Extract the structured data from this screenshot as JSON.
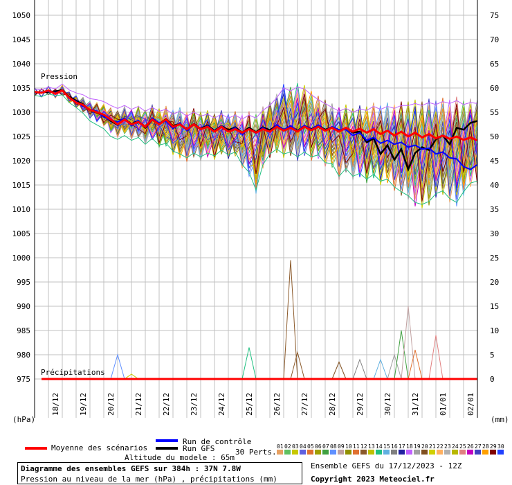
{
  "chart_data": {
    "type": "line",
    "title": "Diagramme des ensembles GEFS sur 384h : 37N 7.8W",
    "subtitle": "Pression au niveau de la mer (hPa) , précipitations (mm)",
    "left_axis": {
      "label": "(hPa)",
      "ylim": [
        970,
        1052
      ],
      "ticks": [
        1050,
        1045,
        1040,
        1035,
        1030,
        1025,
        1020,
        1015,
        1010,
        1005,
        1000,
        995,
        990,
        985,
        980,
        975
      ]
    },
    "right_axis": {
      "label": "(mm)",
      "ylim": [
        -3,
        79
      ],
      "ticks": [
        75,
        70,
        65,
        60,
        55,
        50,
        45,
        40,
        35,
        30,
        25,
        20,
        15,
        10,
        5,
        0
      ]
    },
    "x_dates": [
      "18/12",
      "19/12",
      "20/12",
      "21/12",
      "22/12",
      "23/12",
      "24/12",
      "25/12",
      "26/12",
      "27/12",
      "28/12",
      "29/12",
      "30/12",
      "31/12",
      "01/01",
      "02/01"
    ],
    "x_range_days": [
      0,
      16
    ],
    "section_labels": {
      "pressure": "Pression",
      "precip": "Précipitations"
    },
    "mean_pressure": [
      1034.2,
      1034,
      1034.5,
      1033.8,
      1034.5,
      1033,
      1032,
      1031.5,
      1030.5,
      1030,
      1029.5,
      1028.5,
      1027.5,
      1028.5,
      1027.5,
      1028,
      1027,
      1028.5,
      1027.5,
      1028.5,
      1027,
      1027.5,
      1026.5,
      1027.5,
      1026.5,
      1027,
      1026,
      1027,
      1026,
      1026.5,
      1025.8,
      1026.5,
      1025.8,
      1026.5,
      1026,
      1027,
      1026.2,
      1026.8,
      1026,
      1027,
      1026.3,
      1027,
      1026.2,
      1026.8,
      1026,
      1026.8,
      1026,
      1026.6,
      1025.8,
      1026.5,
      1025.5,
      1026.2,
      1025.2,
      1026,
      1025,
      1025.8,
      1024.8,
      1025.5,
      1024.6,
      1025.2,
      1024.5,
      1025,
      1024.3,
      1024.8,
      1024.2
    ],
    "control_pressure": [
      1034,
      1034.2,
      1034.3,
      1034,
      1034.4,
      1033,
      1032.2,
      1031.2,
      1030.6,
      1030.2,
      1029,
      1028.4,
      1028,
      1028.8,
      1027.2,
      1028.3,
      1027,
      1028.8,
      1027.8,
      1028.2,
      1026.6,
      1027.8,
      1026.2,
      1027.4,
      1026.4,
      1027.2,
      1026.1,
      1027.2,
      1026,
      1026.8,
      1025.4,
      1026.6,
      1025.6,
      1026.8,
      1025.9,
      1027.4,
      1026.4,
      1027.2,
      1026.1,
      1027.3,
      1026.4,
      1027.4,
      1026.2,
      1027,
      1026.4,
      1026.4,
      1025.2,
      1025.8,
      1024.2,
      1024.8,
      1023.6,
      1024.2,
      1023.4,
      1023.8,
      1022.8,
      1023.2,
      1022.4,
      1022.6,
      1021.4,
      1021.8,
      1020.6,
      1020.4,
      1018.8,
      1018.2,
      1019.2
    ],
    "gfs_pressure": [
      1034,
      1034.1,
      1034.2,
      1034.3,
      1034.6,
      1033.2,
      1032.4,
      1031.6,
      1030.4,
      1029.9,
      1029.3,
      1028.2,
      1027.4,
      1028.6,
      1027.6,
      1028.2,
      1026.8,
      1028.4,
      1027.6,
      1028.6,
      1027.2,
      1027.6,
      1026.4,
      1027.6,
      1026.6,
      1027.3,
      1026.2,
      1027.2,
      1026.3,
      1026.9,
      1025.8,
      1026.8,
      1025.9,
      1026.9,
      1026.3,
      1027.3,
      1026.4,
      1027.1,
      1026.2,
      1027.2,
      1026.5,
      1027.3,
      1026.4,
      1026.9,
      1026.1,
      1026.8,
      1025.8,
      1026,
      1023.8,
      1024.6,
      1021.4,
      1023.2,
      1020.2,
      1022.4,
      1018.2,
      1021.6,
      1022.8,
      1022.2,
      1024.4,
      1025.2,
      1023.4,
      1026.8,
      1026.4,
      1027.8,
      1028.2
    ],
    "perturbation_spread_lower": [
      1033.5,
      1033.2,
      1033.8,
      1033.4,
      1033.6,
      1032,
      1031,
      1029.8,
      1028.2,
      1027.4,
      1026.6,
      1025,
      1024.4,
      1025.2,
      1024.2,
      1024.8,
      1023.4,
      1024.6,
      1023.2,
      1023.6,
      1022,
      1021.4,
      1020.6,
      1021.6,
      1020.8,
      1021.6,
      1021,
      1022.2,
      1021.2,
      1021.8,
      1019.2,
      1017.6,
      1014,
      1019.2,
      1021.4,
      1022.4,
      1021.4,
      1021.8,
      1020.8,
      1021.8,
      1020.8,
      1021.2,
      1019.6,
      1019.4,
      1016.8,
      1018.4,
      1016.8,
      1017.4,
      1016.2,
      1017.2,
      1015.8,
      1016.2,
      1014.6,
      1013.6,
      1012.8,
      1011.4,
      1011,
      1011.6,
      1013.2,
      1013.8,
      1012.2,
      1011.4,
      1013.6,
      1015.4,
      1015.8
    ],
    "perturbation_spread_upper": [
      1034.8,
      1034.6,
      1035.2,
      1034.8,
      1035.8,
      1034.6,
      1034,
      1033.6,
      1032.8,
      1032.6,
      1032.2,
      1031.4,
      1030.8,
      1031.4,
      1030.6,
      1031.2,
      1030.2,
      1031,
      1030.2,
      1030.6,
      1029.6,
      1030.2,
      1029.2,
      1030,
      1029.2,
      1029.6,
      1028.8,
      1029.6,
      1028.8,
      1029.4,
      1028.6,
      1029.4,
      1028.8,
      1030.4,
      1031.4,
      1033,
      1035,
      1034.4,
      1035.2,
      1034.8,
      1033.6,
      1032.6,
      1031.8,
      1031,
      1030.2,
      1030.8,
      1030,
      1030.6,
      1030.4,
      1031.2,
      1030.6,
      1031.2,
      1030.8,
      1031.4,
      1031.4,
      1031.8,
      1031.4,
      1032,
      1031.6,
      1032.2,
      1031.8,
      1032.4,
      1031.6,
      1032,
      1031.8
    ],
    "precip_events_mm": [
      {
        "day": 3.0,
        "mm": 5.0,
        "member": "08"
      },
      {
        "day": 3.5,
        "mm": 1.0,
        "member": "03"
      },
      {
        "day": 7.75,
        "mm": 6.5,
        "member": "14"
      },
      {
        "day": 9.25,
        "mm": 24.5,
        "member": "12"
      },
      {
        "day": 9.5,
        "mm": 5.5,
        "member": "12"
      },
      {
        "day": 11.0,
        "mm": 3.5,
        "member": "20"
      },
      {
        "day": 11.75,
        "mm": 4.0,
        "member": "16"
      },
      {
        "day": 12.5,
        "mm": 4.0,
        "member": "15"
      },
      {
        "day": 13.0,
        "mm": 5.0,
        "member": "19"
      },
      {
        "day": 13.25,
        "mm": 10.0,
        "member": "07"
      },
      {
        "day": 13.5,
        "mm": 15.0,
        "member": "09"
      },
      {
        "day": 13.75,
        "mm": 6.0,
        "member": "11"
      },
      {
        "day": 14.5,
        "mm": 9.0,
        "member": "25"
      }
    ]
  },
  "legend": {
    "mean_label": "Moyenne des scénarios",
    "control_label": "Run de contrôle",
    "gfs_label": "Run GFS",
    "perts_label": "30 Perts.",
    "mean_color": "#ff0000",
    "control_color": "#0000ff",
    "gfs_color": "#000000",
    "pert_numbers": [
      "01",
      "02",
      "03",
      "04",
      "05",
      "06",
      "07",
      "08",
      "09",
      "10",
      "11",
      "12",
      "13",
      "14",
      "15",
      "16",
      "17",
      "18",
      "19",
      "20",
      "21",
      "22",
      "23",
      "24",
      "25",
      "26",
      "27",
      "28",
      "29",
      "30"
    ],
    "pert_colors": [
      "#e8a060",
      "#60c060",
      "#c8c800",
      "#6060e0",
      "#e07030",
      "#a0a000",
      "#40a040",
      "#6090ff",
      "#c0a0a0",
      "#909000",
      "#e07030",
      "#8b5a2b",
      "#c0c000",
      "#20c080",
      "#60b0e0",
      "#808080",
      "#2020a0",
      "#c060ff",
      "#a0a0a0",
      "#805020",
      "#d0d000",
      "#ffb060",
      "#b0b0b0",
      "#b8b800",
      "#e08080",
      "#c000c0",
      "#4040c0",
      "#ffa000",
      "#800000",
      "#2040ff"
    ]
  },
  "footer": {
    "altitude": "Altitude du modele : 65m",
    "title": "Diagramme des ensembles GEFS sur 384h : 37N 7.8W",
    "subtitle": "Pression au niveau de la mer (hPa) , précipitations (mm)",
    "run": "Ensemble GEFS du 17/12/2023 - 12Z",
    "copyright": "Copyright 2023 Meteociel.fr"
  }
}
